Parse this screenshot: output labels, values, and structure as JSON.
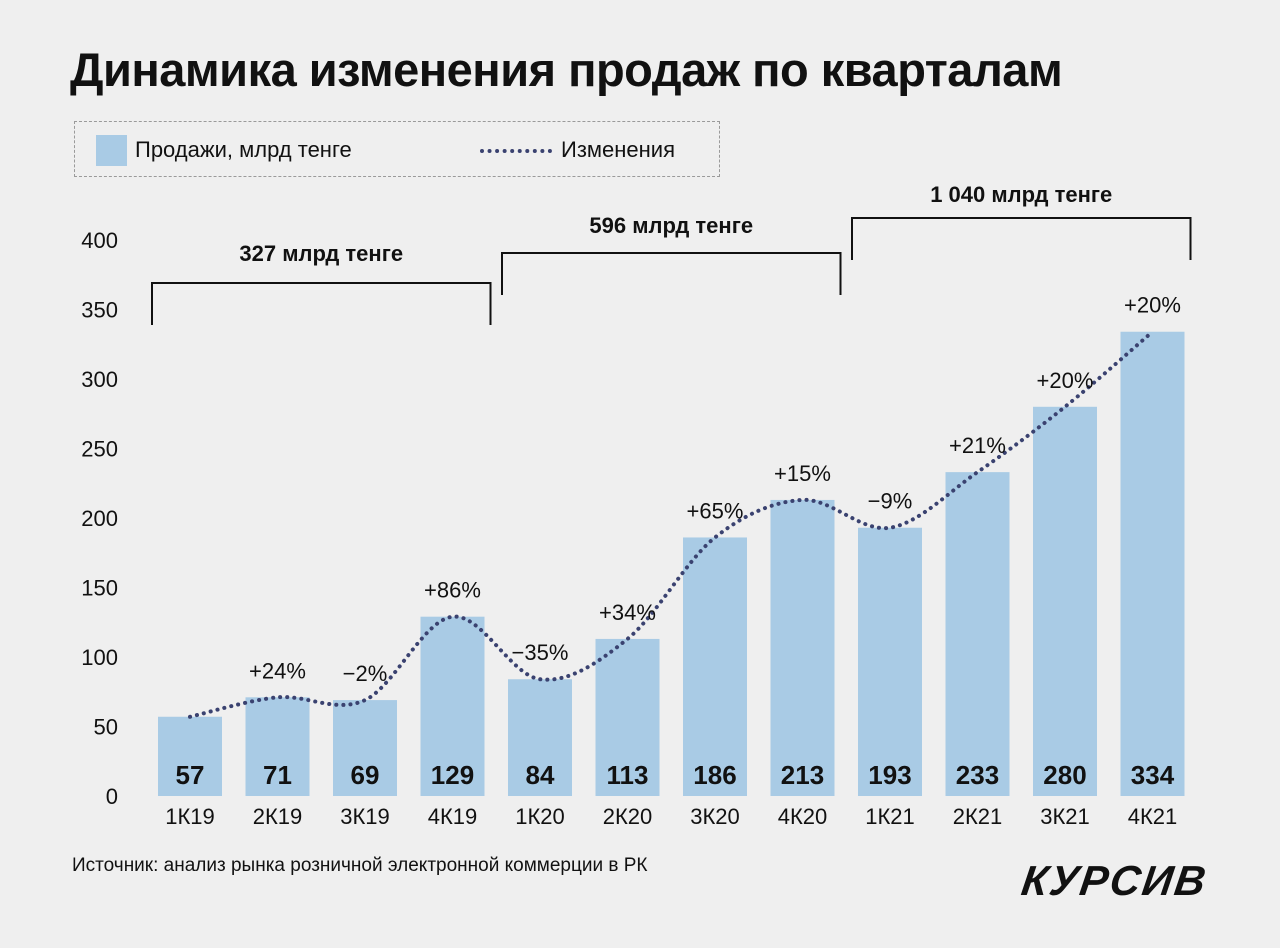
{
  "chart_data": {
    "type": "bar",
    "title": "Динамика изменения продаж по кварталам",
    "legend": {
      "sales_label": "Продажи, млрд тенге",
      "change_label": "Изменения"
    },
    "categories": [
      "1К19",
      "2К19",
      "3К19",
      "4К19",
      "1К20",
      "2К20",
      "3К20",
      "4К20",
      "1К21",
      "2К21",
      "3К21",
      "4К21"
    ],
    "series": [
      {
        "name": "Продажи, млрд тенге",
        "values": [
          57,
          71,
          69,
          129,
          84,
          113,
          186,
          213,
          193,
          233,
          280,
          334
        ],
        "color": "#a9cbe5"
      },
      {
        "name": "Изменения",
        "labels": [
          "",
          "+24%",
          "−2%",
          "+86%",
          "−35%",
          "+34%",
          "+65%",
          "+15%",
          "−9%",
          "+21%",
          "+20%",
          "+20%"
        ],
        "color": "#3a4270"
      }
    ],
    "value_labels": [
      "57",
      "71",
      "69",
      "129",
      "84",
      "113",
      "186",
      "213",
      "193",
      "233",
      "280",
      "334"
    ],
    "y_ticks": [
      0,
      50,
      100,
      150,
      200,
      250,
      300,
      350,
      400
    ],
    "y_tick_labels": [
      "0",
      "50",
      "100",
      "150",
      "200",
      "250",
      "300",
      "350",
      "400"
    ],
    "ylim": [
      0,
      400
    ],
    "groups": [
      {
        "label": "327 млрд тенге",
        "start": 0,
        "end": 3,
        "level": "low"
      },
      {
        "label": "596 млрд тенге",
        "start": 4,
        "end": 7,
        "level": "mid"
      },
      {
        "label": "1 040 млрд тенге",
        "start": 8,
        "end": 11,
        "level": "high"
      }
    ],
    "source": "Источник: анализ рынка розничной электронной коммерции в РК",
    "logo": "КУРСИВ"
  }
}
